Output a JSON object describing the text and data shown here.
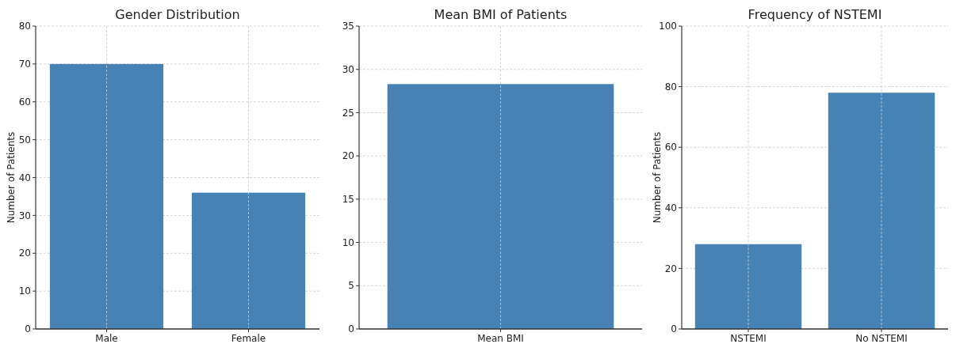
{
  "chart_data": [
    {
      "type": "bar",
      "title": "Gender Distribution",
      "ylabel": "Number of Patients",
      "categories": [
        "Male",
        "Female"
      ],
      "values": [
        70,
        36
      ],
      "color": "#4682b4",
      "ylim": [
        0,
        80
      ],
      "yticks": [
        0,
        10,
        20,
        30,
        40,
        50,
        60,
        70,
        80
      ],
      "grid": true
    },
    {
      "type": "bar",
      "title": "Mean BMI of Patients",
      "categories": [
        "Mean BMI"
      ],
      "values": [
        28.3
      ],
      "color": "#4682b4",
      "ylim": [
        0,
        35
      ],
      "yticks": [
        0,
        5,
        10,
        15,
        20,
        25,
        30,
        35
      ],
      "grid": true
    },
    {
      "type": "bar",
      "title": "Frequency of NSTEMI",
      "ylabel": "Number of Patients",
      "categories": [
        "NSTEMI",
        "No NSTEMI"
      ],
      "values": [
        28,
        78
      ],
      "color": "#4682b4",
      "ylim": [
        0,
        100
      ],
      "yticks": [
        0,
        20,
        40,
        60,
        80,
        100
      ],
      "grid": true
    }
  ]
}
